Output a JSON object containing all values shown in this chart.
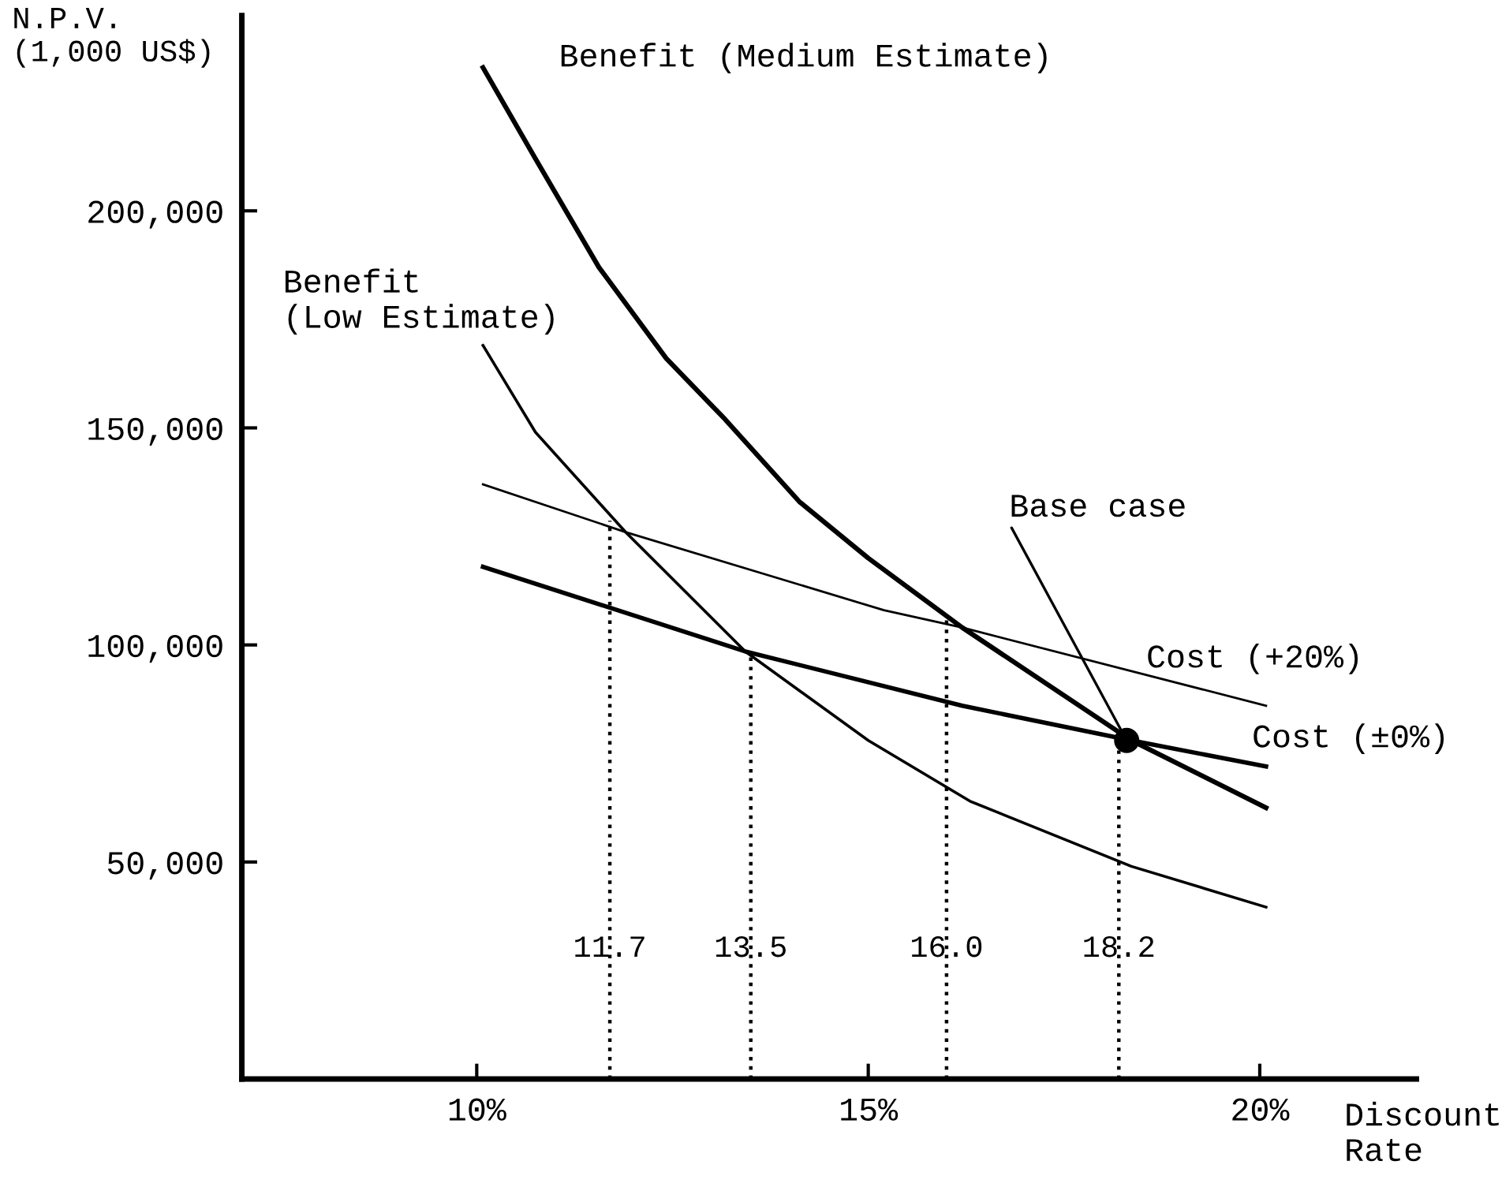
{
  "chart_data": {
    "type": "line",
    "xlabel": "Discount\nRate",
    "ylabel": "N.P.V.\n(1,000 US$)",
    "xlim": [
      7,
      22
    ],
    "xticks": [
      {
        "value": 10,
        "label": "10%"
      },
      {
        "value": 15,
        "label": "15%"
      },
      {
        "value": 20,
        "label": "20%"
      }
    ],
    "ylim": [
      0,
      245000
    ],
    "yticks": [
      {
        "value": 50000,
        "label": "50,000"
      },
      {
        "value": 100000,
        "label": "100,000"
      },
      {
        "value": 150000,
        "label": "150,000"
      },
      {
        "value": 200000,
        "label": "200,000"
      }
    ],
    "grid": false,
    "legend": false,
    "marker": "none",
    "line_style": "solid",
    "series": [
      {
        "name": "Benefit (Medium Estimate)",
        "color": "#000000",
        "x": [
          10.08,
          10.75,
          11.56,
          12.42,
          13.17,
          14.12,
          15.0,
          16.2,
          18.36,
          20.08
        ],
        "values": [
          233000,
          212000,
          187000,
          166000,
          152000,
          133000,
          120000,
          104000,
          78000,
          62500
        ]
      },
      {
        "name": "Benefit\n(Low Estimate)",
        "color": "#000000",
        "x": [
          10.08,
          10.75,
          11.9,
          13.43,
          15.0,
          16.3,
          18.36,
          20.08
        ],
        "values": [
          169000,
          149000,
          126000,
          98500,
          78000,
          64000,
          49000,
          39600
        ]
      },
      {
        "name": "Cost (+20%)",
        "color": "#000000",
        "x": [
          10.08,
          11.9,
          15.2,
          16.2,
          20.08
        ],
        "values": [
          137000,
          126000,
          108000,
          104000,
          86000
        ]
      },
      {
        "name": "Cost (±0%)",
        "color": "#000000",
        "x": [
          10.08,
          13.43,
          16.2,
          18.36,
          20.08
        ],
        "values": [
          118000,
          98500,
          86000,
          78000,
          72000
        ]
      },
      {
        "type": "scatter",
        "marker": "circle",
        "color": "#000000",
        "x": [
          18.3
        ],
        "values": [
          78000
        ]
      }
    ],
    "ref_lines": [
      {
        "axis": "x",
        "value": 11.7,
        "label": "11.7",
        "line_style": "dotted",
        "color": "#000000"
      },
      {
        "axis": "x",
        "value": 13.5,
        "label": "13.5",
        "line_style": "dotted",
        "color": "#000000"
      },
      {
        "axis": "x",
        "value": 16.0,
        "label": "16.0",
        "line_style": "dotted",
        "color": "#000000"
      },
      {
        "axis": "x",
        "value": 18.2,
        "label": "18.2",
        "line_style": "dotted",
        "color": "#000000"
      }
    ],
    "annotations": [
      {
        "text": "Base case",
        "x": 18.3,
        "y": 78000
      }
    ]
  }
}
